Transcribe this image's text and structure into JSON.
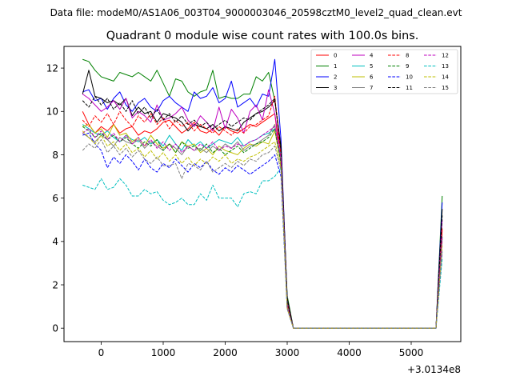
{
  "suptitle": "Data file: modeM0/AS1A06_003T04_9000003046_20598cztM0_level2_quad_clean.evt",
  "chart_data": {
    "type": "line",
    "title": "Quadrant 0 module wise count rates with 100.0s bins.",
    "xlabel": "",
    "ylabel": "",
    "x_offset_label": "+3.0134e8",
    "xlim": [
      -600,
      5800
    ],
    "ylim": [
      -0.62,
      13.0
    ],
    "xticks": [
      0,
      1000,
      2000,
      3000,
      4000,
      5000
    ],
    "xtick_labels": [
      "0",
      "1000",
      "2000",
      "3000",
      "4000",
      "5000"
    ],
    "yticks": [
      0,
      2,
      4,
      6,
      8,
      10,
      12
    ],
    "ytick_labels": [
      "0",
      "2",
      "4",
      "6",
      "8",
      "10",
      "12"
    ],
    "grid": false,
    "legend_position": "top-right",
    "legend_columns": 4,
    "x_common": [
      -300,
      -200,
      -100,
      0,
      100,
      200,
      300,
      400,
      500,
      600,
      700,
      800,
      900,
      1000,
      1100,
      1200,
      1300,
      1400,
      1500,
      1600,
      1700,
      1800,
      1900,
      2000,
      2100,
      2200,
      2300,
      2400,
      2500,
      2600,
      2700,
      2800,
      2900,
      3000,
      3100,
      5400,
      5500
    ],
    "series": [
      {
        "name": "0",
        "color": "#ff0000",
        "dash": "solid",
        "values": [
          10.0,
          9.4,
          9.0,
          9.3,
          9.1,
          9.4,
          9.0,
          9.2,
          9.3,
          8.9,
          9.1,
          9.0,
          9.2,
          9.5,
          9.6,
          9.3,
          9.0,
          9.2,
          9.5,
          9.1,
          9.0,
          9.2,
          8.9,
          9.3,
          9.1,
          9.0,
          9.2,
          9.4,
          9.3,
          9.5,
          9.7,
          9.9,
          7.5,
          1.2,
          0.0,
          0.0,
          4.5
        ]
      },
      {
        "name": "1",
        "color": "#008000",
        "dash": "solid",
        "values": [
          12.4,
          12.3,
          11.9,
          11.6,
          11.5,
          11.4,
          11.8,
          11.7,
          11.6,
          11.8,
          11.6,
          11.4,
          11.9,
          11.3,
          10.7,
          11.5,
          11.4,
          10.9,
          10.7,
          10.9,
          11.0,
          11.9,
          10.6,
          10.7,
          10.6,
          10.6,
          10.8,
          10.8,
          11.6,
          11.4,
          11.8,
          10.5,
          8.2,
          1.5,
          0.0,
          0.0,
          6.1
        ]
      },
      {
        "name": "2",
        "color": "#0000ff",
        "dash": "solid",
        "values": [
          10.9,
          11.0,
          10.5,
          10.6,
          10.1,
          10.6,
          10.9,
          10.3,
          10.0,
          10.4,
          10.6,
          10.2,
          10.0,
          10.5,
          10.7,
          10.4,
          10.2,
          10.0,
          10.9,
          10.6,
          10.7,
          11.1,
          10.4,
          10.6,
          11.4,
          10.2,
          10.4,
          10.6,
          10.2,
          10.8,
          10.7,
          12.4,
          8.7,
          1.3,
          0.0,
          0.0,
          5.8
        ]
      },
      {
        "name": "3",
        "color": "#000000",
        "dash": "solid",
        "values": [
          10.8,
          11.9,
          10.7,
          10.6,
          10.4,
          10.5,
          10.3,
          10.6,
          9.8,
          10.2,
          9.9,
          10.0,
          9.5,
          9.9,
          9.8,
          9.7,
          9.5,
          9.1,
          9.4,
          9.3,
          9.2,
          9.4,
          9.1,
          9.3,
          9.2,
          9.1,
          9.5,
          9.7,
          9.9,
          10.0,
          10.2,
          10.5,
          8.4,
          1.4,
          0.0,
          0.0,
          5.5
        ]
      },
      {
        "name": "4",
        "color": "#bf00bf",
        "dash": "solid",
        "values": [
          10.8,
          10.6,
          10.3,
          10.0,
          10.2,
          10.5,
          10.1,
          10.6,
          9.7,
          10.0,
          9.8,
          9.5,
          10.3,
          9.6,
          9.7,
          9.9,
          10.2,
          9.6,
          9.3,
          9.8,
          9.5,
          9.1,
          10.2,
          9.2,
          10.1,
          9.7,
          9.0,
          10.0,
          10.3,
          9.6,
          11.0,
          9.9,
          8.0,
          1.2,
          0.0,
          0.0,
          5.0
        ]
      },
      {
        "name": "5",
        "color": "#00bfbf",
        "dash": "solid",
        "values": [
          9.4,
          9.2,
          9.0,
          8.9,
          9.1,
          8.8,
          8.6,
          8.9,
          8.7,
          8.6,
          8.8,
          8.5,
          8.7,
          8.4,
          8.9,
          8.5,
          8.2,
          8.7,
          8.4,
          8.6,
          8.3,
          8.5,
          8.7,
          8.6,
          8.5,
          8.8,
          8.4,
          8.6,
          8.7,
          8.9,
          9.0,
          9.2,
          7.9,
          1.0,
          0.0,
          0.0,
          4.2
        ]
      },
      {
        "name": "6",
        "color": "#bfbf00",
        "dash": "solid",
        "values": [
          9.3,
          9.4,
          9.0,
          9.2,
          8.8,
          9.4,
          8.9,
          9.0,
          8.6,
          8.8,
          8.4,
          8.9,
          8.5,
          8.3,
          8.5,
          8.1,
          8.6,
          8.4,
          8.5,
          8.1,
          8.3,
          8.0,
          8.4,
          8.2,
          8.1,
          8.0,
          8.3,
          8.5,
          8.4,
          8.6,
          8.5,
          9.1,
          7.6,
          1.0,
          0.0,
          0.0,
          4.0
        ]
      },
      {
        "name": "7",
        "color": "#808080",
        "dash": "solid",
        "values": [
          9.0,
          8.8,
          8.6,
          8.9,
          8.7,
          8.4,
          8.8,
          8.6,
          8.5,
          8.7,
          8.3,
          8.6,
          8.4,
          8.2,
          8.5,
          8.3,
          8.0,
          8.4,
          8.2,
          8.3,
          8.1,
          8.4,
          8.2,
          8.5,
          8.3,
          8.6,
          8.2,
          8.4,
          8.5,
          8.7,
          8.9,
          9.4,
          7.7,
          1.1,
          0.0,
          0.0,
          4.1
        ]
      },
      {
        "name": "8",
        "color": "#ff0000",
        "dash": "dashed",
        "values": [
          9.6,
          9.3,
          9.8,
          9.5,
          9.9,
          9.4,
          10.0,
          9.6,
          9.3,
          9.8,
          9.5,
          9.9,
          9.4,
          9.7,
          9.2,
          9.6,
          9.3,
          9.5,
          9.1,
          9.4,
          9.2,
          9.0,
          9.3,
          9.1,
          8.9,
          9.2,
          9.0,
          9.3,
          9.4,
          9.6,
          9.8,
          10.7,
          7.9,
          1.1,
          0.0,
          0.0,
          4.6
        ]
      },
      {
        "name": "9",
        "color": "#008000",
        "dash": "dashed",
        "values": [
          9.3,
          9.1,
          8.8,
          9.0,
          8.7,
          8.9,
          8.6,
          8.8,
          8.5,
          8.3,
          8.6,
          8.4,
          8.7,
          8.2,
          8.5,
          8.1,
          8.6,
          8.3,
          8.4,
          8.2,
          8.5,
          8.1,
          8.3,
          8.0,
          8.2,
          8.4,
          8.1,
          8.3,
          8.5,
          8.6,
          8.8,
          9.2,
          7.6,
          1.0,
          0.0,
          0.0,
          4.3
        ]
      },
      {
        "name": "10",
        "color": "#0000ff",
        "dash": "dashed",
        "values": [
          8.9,
          9.0,
          8.5,
          8.2,
          7.4,
          7.9,
          7.6,
          8.0,
          7.7,
          7.3,
          7.8,
          7.4,
          7.2,
          7.6,
          7.4,
          7.8,
          7.5,
          7.2,
          7.6,
          7.4,
          7.7,
          7.3,
          7.1,
          7.4,
          7.2,
          7.5,
          7.3,
          7.1,
          7.3,
          7.5,
          7.7,
          8.0,
          7.0,
          0.9,
          0.0,
          0.0,
          3.5
        ]
      },
      {
        "name": "11",
        "color": "#000000",
        "dash": "dashed",
        "values": [
          10.5,
          10.2,
          10.7,
          10.3,
          10.6,
          10.1,
          10.4,
          10.0,
          10.5,
          9.9,
          10.2,
          9.7,
          10.1,
          9.6,
          9.9,
          9.5,
          9.8,
          9.4,
          9.6,
          9.3,
          9.5,
          9.2,
          9.4,
          9.6,
          9.3,
          9.5,
          9.7,
          9.6,
          9.9,
          10.1,
          10.3,
          10.6,
          8.2,
          1.3,
          0.0,
          0.0,
          5.2
        ]
      },
      {
        "name": "12",
        "color": "#bf00bf",
        "dash": "dashed",
        "values": [
          9.0,
          9.2,
          8.8,
          9.1,
          8.7,
          9.0,
          8.6,
          8.9,
          8.5,
          8.8,
          8.4,
          8.7,
          8.3,
          8.6,
          8.2,
          8.5,
          8.1,
          8.4,
          8.2,
          8.5,
          8.3,
          8.6,
          8.2,
          8.4,
          8.3,
          8.5,
          8.4,
          8.6,
          8.7,
          8.9,
          9.1,
          9.3,
          7.8,
          1.0,
          0.0,
          0.0,
          4.2
        ]
      },
      {
        "name": "13",
        "color": "#00bfbf",
        "dash": "dashed",
        "values": [
          6.6,
          6.5,
          6.4,
          6.9,
          6.4,
          6.5,
          6.9,
          6.6,
          6.1,
          6.1,
          6.4,
          6.2,
          6.3,
          5.9,
          5.7,
          5.8,
          6.0,
          5.7,
          5.7,
          6.2,
          5.9,
          6.6,
          6.0,
          6.0,
          6.0,
          5.6,
          6.2,
          6.3,
          6.2,
          6.8,
          6.8,
          7.0,
          7.4,
          0.9,
          0.0,
          0.0,
          3.2
        ]
      },
      {
        "name": "14",
        "color": "#bfbf00",
        "dash": "dashed",
        "values": [
          9.1,
          8.8,
          8.5,
          8.9,
          8.4,
          8.6,
          8.2,
          8.5,
          8.1,
          8.3,
          7.9,
          8.2,
          7.8,
          8.1,
          7.7,
          8.0,
          7.6,
          7.9,
          7.5,
          7.8,
          7.6,
          7.9,
          7.7,
          8.0,
          7.6,
          7.8,
          7.7,
          7.9,
          8.0,
          8.2,
          8.4,
          8.6,
          7.4,
          0.9,
          0.0,
          0.0,
          3.8
        ]
      },
      {
        "name": "15",
        "color": "#808080",
        "dash": "dashed",
        "values": [
          8.2,
          8.5,
          8.3,
          8.7,
          8.1,
          8.4,
          8.0,
          8.3,
          7.9,
          8.2,
          7.8,
          7.6,
          7.9,
          7.5,
          7.5,
          7.6,
          6.9,
          7.6,
          7.5,
          7.3,
          7.7,
          7.2,
          7.4,
          7.6,
          7.4,
          7.7,
          7.5,
          7.8,
          7.7,
          8.0,
          8.1,
          8.4,
          7.3,
          0.9,
          0.0,
          0.0,
          3.6
        ]
      }
    ]
  }
}
